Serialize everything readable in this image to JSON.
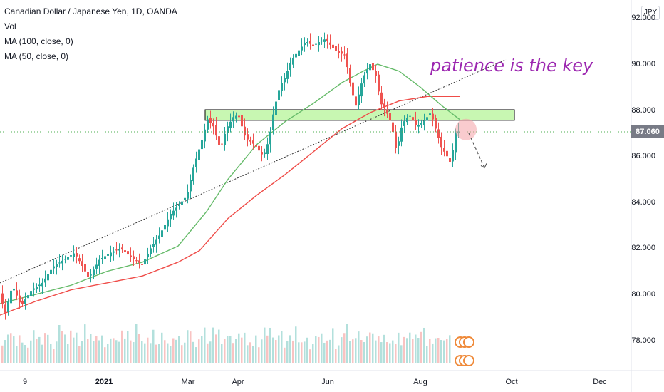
{
  "legend": {
    "title": "Canadian Dollar / Japanese Yen, 1D, OANDA",
    "vol": "Vol",
    "ma100": "MA (100, close, 0)",
    "ma50": "MA (50, close, 0)"
  },
  "currency_badge": "JPY",
  "annotation": "patience is the key",
  "last_price_label": "87.060",
  "colors": {
    "up": "#26a69a",
    "down": "#ef5350",
    "ma100": "#ef4c48",
    "ma50": "#66bb6a",
    "zone_fill": "#c8f7b2",
    "annotation": "#9c27b0",
    "trendline": "#333333",
    "last_price_line": "#4caf50"
  },
  "chart_data": {
    "type": "candlestick",
    "symbol": "CADJPY",
    "ylim": [
      76.7,
      92.5
    ],
    "y_ticks": [
      "92.000",
      "90.000",
      "88.000",
      "86.000",
      "84.000",
      "82.000",
      "80.000",
      "78.000"
    ],
    "x_ticks": [
      "9",
      "2021",
      "Mar",
      "Apr",
      "Jun",
      "Aug",
      "Oct",
      "Dec"
    ],
    "close_path": [
      [
        0,
        80.0
      ],
      [
        8,
        79.2
      ],
      [
        18,
        80.4
      ],
      [
        30,
        79.5
      ],
      [
        45,
        80.2
      ],
      [
        60,
        80.5
      ],
      [
        75,
        81.2
      ],
      [
        90,
        81.5
      ],
      [
        105,
        81.8
      ],
      [
        115,
        81.3
      ],
      [
        125,
        80.7
      ],
      [
        140,
        81.5
      ],
      [
        155,
        81.8
      ],
      [
        170,
        82.0
      ],
      [
        185,
        81.6
      ],
      [
        200,
        81.3
      ],
      [
        212,
        82.0
      ],
      [
        225,
        82.6
      ],
      [
        240,
        83.5
      ],
      [
        255,
        84.0
      ],
      [
        263,
        84.3
      ],
      [
        272,
        85.5
      ],
      [
        282,
        86.5
      ],
      [
        292,
        87.6
      ],
      [
        300,
        87.3
      ],
      [
        310,
        86.3
      ],
      [
        318,
        87.2
      ],
      [
        328,
        87.7
      ],
      [
        335,
        87.8
      ],
      [
        345,
        86.8
      ],
      [
        358,
        86.5
      ],
      [
        370,
        86.0
      ],
      [
        378,
        86.7
      ],
      [
        385,
        88.0
      ],
      [
        393,
        89.0
      ],
      [
        400,
        89.4
      ],
      [
        410,
        90.2
      ],
      [
        420,
        90.6
      ],
      [
        430,
        91.0
      ],
      [
        440,
        90.8
      ],
      [
        450,
        91.0
      ],
      [
        458,
        91.1
      ],
      [
        465,
        90.8
      ],
      [
        475,
        90.5
      ],
      [
        485,
        90.4
      ],
      [
        493,
        89.0
      ],
      [
        500,
        88.2
      ],
      [
        510,
        89.4
      ],
      [
        520,
        90.0
      ],
      [
        528,
        89.5
      ],
      [
        535,
        88.3
      ],
      [
        542,
        88.0
      ],
      [
        550,
        87.4
      ],
      [
        557,
        86.2
      ],
      [
        565,
        87.4
      ],
      [
        575,
        87.8
      ],
      [
        585,
        87.3
      ],
      [
        595,
        87.5
      ],
      [
        605,
        87.9
      ],
      [
        612,
        87.2
      ],
      [
        620,
        86.4
      ],
      [
        628,
        86.0
      ],
      [
        633,
        85.7
      ],
      [
        640,
        87.0
      ],
      [
        645,
        87.1
      ]
    ],
    "ma100": [
      [
        0,
        79.1
      ],
      [
        50,
        79.7
      ],
      [
        100,
        80.2
      ],
      [
        150,
        80.5
      ],
      [
        200,
        80.8
      ],
      [
        250,
        81.4
      ],
      [
        280,
        81.9
      ],
      [
        320,
        83.3
      ],
      [
        360,
        84.3
      ],
      [
        400,
        85.2
      ],
      [
        440,
        86.2
      ],
      [
        480,
        87.2
      ],
      [
        520,
        87.9
      ],
      [
        560,
        88.4
      ],
      [
        600,
        88.6
      ],
      [
        645,
        88.6
      ]
    ],
    "ma50": [
      [
        0,
        79.6
      ],
      [
        50,
        80.0
      ],
      [
        100,
        80.4
      ],
      [
        150,
        81.0
      ],
      [
        200,
        81.4
      ],
      [
        250,
        82.1
      ],
      [
        290,
        83.6
      ],
      [
        320,
        85.0
      ],
      [
        360,
        86.5
      ],
      [
        400,
        87.5
      ],
      [
        440,
        88.3
      ],
      [
        480,
        89.2
      ],
      [
        510,
        89.7
      ],
      [
        530,
        90.0
      ],
      [
        560,
        89.7
      ],
      [
        590,
        89.0
      ],
      [
        620,
        88.2
      ],
      [
        645,
        87.6
      ]
    ],
    "trendline": [
      [
        0,
        80.5
      ],
      [
        710,
        90.2
      ]
    ],
    "resistance_zone": {
      "x": [
        288,
        722
      ],
      "y": [
        87.56,
        88.02
      ]
    },
    "last_price": 87.06,
    "projection": [
      [
        658,
        87.0
      ],
      [
        680,
        85.5
      ]
    ],
    "highlight_circle": {
      "x": 654,
      "y": 87.16
    },
    "volume_relative": [
      0.42,
      0.55,
      0.38,
      0.61,
      0.47,
      0.52,
      0.33,
      0.44,
      0.58,
      0.36,
      0.49,
      0.41,
      0.63,
      0.37,
      0.45,
      0.54,
      0.39,
      0.48,
      0.56,
      0.35,
      0.43,
      0.6,
      0.4,
      0.5,
      0.46,
      0.57,
      0.34,
      0.52,
      0.44,
      0.62,
      0.38,
      0.47,
      0.55,
      0.41,
      0.49,
      0.36,
      0.58,
      0.45,
      0.51,
      0.4,
      0.6,
      0.43,
      0.48,
      0.37,
      0.56,
      0.5,
      0.42,
      0.64,
      0.39,
      0.46
    ]
  }
}
